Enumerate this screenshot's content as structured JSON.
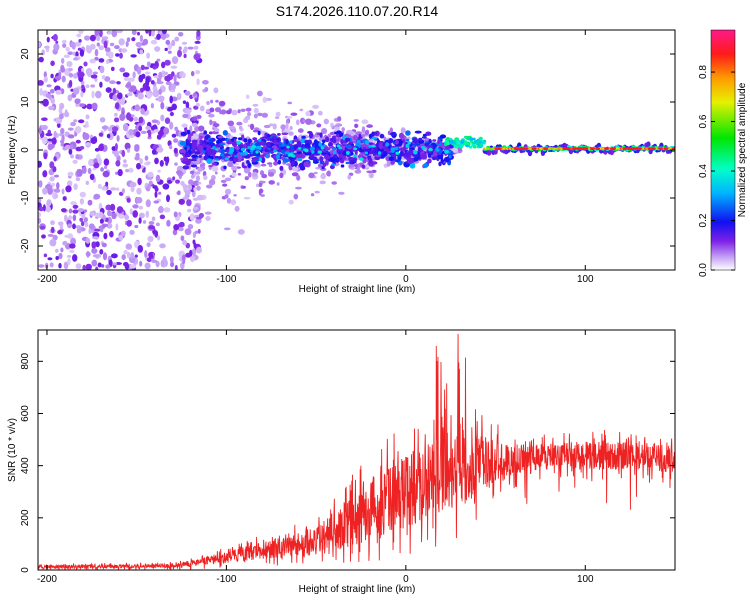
{
  "title": "S174.2026.110.07.20.R14",
  "colors": {
    "snr_line": "#ee2222",
    "background": "#ffffff",
    "axes": "#000000"
  },
  "chart_data": [
    {
      "type": "heatmap",
      "xlabel": "Height of straight line (km)",
      "ylabel": "Frequency (Hz)",
      "xlim": [
        -205,
        150
      ],
      "ylim": [
        -25,
        25
      ],
      "xticks": [
        -200,
        -100,
        0,
        100
      ],
      "xtick_labels": [
        "-200",
        "-100",
        "0",
        "100"
      ],
      "yticks": [
        -20,
        -10,
        0,
        10,
        20
      ],
      "ytick_labels": [
        "-20",
        "-10",
        "0",
        "10",
        "20"
      ],
      "colorbar": {
        "label": "Normalized spectral amplitude",
        "range": [
          0,
          0.97
        ],
        "ticks": [
          0.0,
          0.2,
          0.4,
          0.6,
          0.8
        ],
        "tick_labels": [
          "0.0",
          "0.2",
          "0.4",
          "0.6",
          "0.8"
        ]
      },
      "regions": [
        {
          "x_range": [
            -205,
            -125
          ],
          "freq_spread_hz": 25,
          "amplitude": [
            0.02,
            0.15
          ],
          "description": "diffuse noise"
        },
        {
          "x_range": [
            -125,
            25
          ],
          "freq_spread_hz": 6,
          "amplitude": [
            0.1,
            0.3
          ]
        },
        {
          "x_range": [
            25,
            45
          ],
          "freq_center_hz": 2,
          "amplitude": [
            0.3,
            0.5
          ]
        },
        {
          "x_range": [
            45,
            150
          ],
          "freq_center_hz": 0.3,
          "amplitude": [
            0.6,
            0.95
          ]
        }
      ]
    },
    {
      "type": "line",
      "xlabel": "Height of straight line (km)",
      "ylabel": "SNR (10 * v/v)",
      "xlim": [
        -205,
        150
      ],
      "ylim": [
        0,
        920
      ],
      "xticks": [
        -200,
        -100,
        0,
        100
      ],
      "xtick_labels": [
        "-200",
        "-100",
        "0",
        "100"
      ],
      "yticks": [
        0,
        200,
        400,
        600,
        800
      ],
      "ytick_labels": [
        "0",
        "200",
        "400",
        "600",
        "800"
      ],
      "series": [
        {
          "name": "SNR",
          "envelope": [
            {
              "x": -205,
              "base": 12,
              "spread": 12
            },
            {
              "x": -130,
              "base": 15,
              "spread": 15
            },
            {
              "x": -110,
              "base": 35,
              "spread": 30
            },
            {
              "x": -80,
              "base": 75,
              "spread": 60
            },
            {
              "x": -50,
              "base": 110,
              "spread": 100
            },
            {
              "x": -30,
              "base": 190,
              "spread": 180
            },
            {
              "x": -10,
              "base": 270,
              "spread": 240
            },
            {
              "x": 10,
              "base": 330,
              "spread": 260
            },
            {
              "x": 28,
              "base": 400,
              "spread": 300
            },
            {
              "x": 45,
              "base": 410,
              "spread": 170
            },
            {
              "x": 70,
              "base": 430,
              "spread": 90
            },
            {
              "x": 100,
              "base": 440,
              "spread": 100
            },
            {
              "x": 150,
              "base": 430,
              "spread": 100
            }
          ],
          "peak": {
            "x": 29,
            "y": 905
          }
        }
      ]
    }
  ]
}
